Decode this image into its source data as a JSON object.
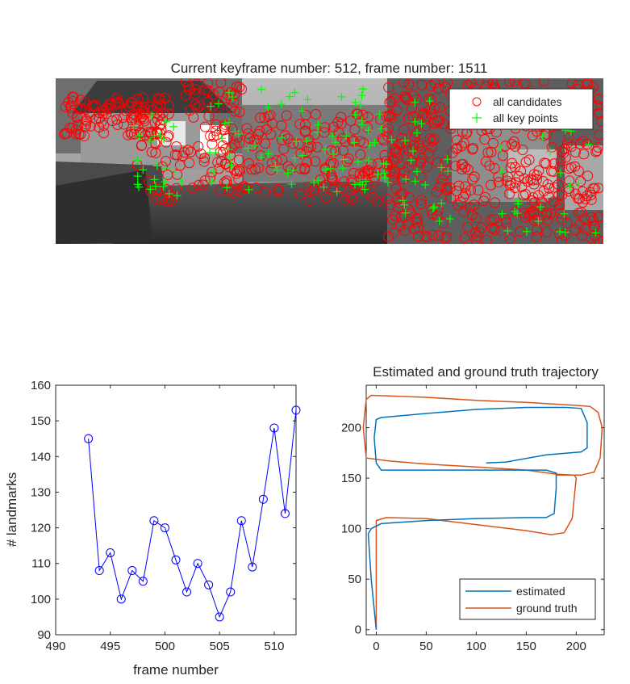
{
  "figure_title": "Current keyframe number: 512, frame number: 1511",
  "image_panel": {
    "legend": [
      {
        "label": "all candidates",
        "marker": "circle",
        "color": "#ff0000"
      },
      {
        "label": "all key points",
        "marker": "plus",
        "color": "#00ff00"
      }
    ]
  },
  "chart_data": [
    {
      "type": "line",
      "title": "",
      "xlabel": "frame number",
      "ylabel": "# landmarks",
      "xlim": [
        490,
        512
      ],
      "ylim": [
        90,
        160
      ],
      "xticks": [
        490,
        495,
        500,
        505,
        510
      ],
      "yticks": [
        90,
        100,
        110,
        120,
        130,
        140,
        150,
        160
      ],
      "color": "#0000ff",
      "marker": "circle",
      "x": [
        493,
        494,
        495,
        496,
        497,
        498,
        499,
        500,
        501,
        502,
        503,
        504,
        505,
        506,
        507,
        508,
        509,
        510,
        511,
        512
      ],
      "y": [
        145,
        108,
        113,
        100,
        108,
        105,
        122,
        120,
        111,
        102,
        110,
        104,
        95,
        102,
        122,
        109,
        128,
        148,
        124,
        153
      ],
      "grid": false
    },
    {
      "type": "line",
      "title": "Estimated and ground truth trajectory",
      "xlim": [
        -10,
        228
      ],
      "ylim": [
        -5,
        242
      ],
      "xticks": [
        0,
        50,
        100,
        150,
        200
      ],
      "yticks": [
        0,
        50,
        100,
        150,
        200
      ],
      "legend_position": "bottom-right",
      "grid": false,
      "series": [
        {
          "name": "estimated",
          "color": "#0072bd",
          "points": [
            [
              0,
              0
            ],
            [
              -5,
              50
            ],
            [
              -8,
              95
            ],
            [
              -5,
              100
            ],
            [
              5,
              105
            ],
            [
              50,
              108
            ],
            [
              100,
              110
            ],
            [
              150,
              111
            ],
            [
              170,
              111
            ],
            [
              178,
              115
            ],
            [
              180,
              140
            ],
            [
              180,
              155
            ],
            [
              170,
              158
            ],
            [
              100,
              158
            ],
            [
              50,
              158
            ],
            [
              5,
              158
            ],
            [
              0,
              165
            ],
            [
              -2,
              190
            ],
            [
              0,
              208
            ],
            [
              5,
              210
            ],
            [
              50,
              214
            ],
            [
              100,
              218
            ],
            [
              150,
              220
            ],
            [
              190,
              220
            ],
            [
              205,
              219
            ],
            [
              211,
              205
            ],
            [
              211,
              180
            ],
            [
              205,
              176
            ],
            [
              170,
              173
            ],
            [
              130,
              166
            ],
            [
              110,
              165
            ]
          ]
        },
        {
          "name": "ground truth",
          "color": "#d95319",
          "points": [
            [
              0,
              0
            ],
            [
              0,
              30
            ],
            [
              0,
              60
            ],
            [
              0,
              95
            ],
            [
              0,
              108
            ],
            [
              10,
              111
            ],
            [
              50,
              110
            ],
            [
              100,
              104
            ],
            [
              150,
              98
            ],
            [
              175,
              94
            ],
            [
              188,
              96
            ],
            [
              196,
              110
            ],
            [
              200,
              150
            ],
            [
              198,
              153
            ],
            [
              180,
              154
            ],
            [
              150,
              158
            ],
            [
              100,
              161
            ],
            [
              50,
              164
            ],
            [
              12,
              167
            ],
            [
              -10,
              170
            ],
            [
              -13,
              200
            ],
            [
              -10,
              228
            ],
            [
              -5,
              232
            ],
            [
              50,
              230
            ],
            [
              100,
              227
            ],
            [
              150,
              225
            ],
            [
              200,
              222
            ],
            [
              214,
              221
            ],
            [
              222,
              215
            ],
            [
              226,
              200
            ],
            [
              224,
              170
            ],
            [
              218,
              156
            ],
            [
              205,
              153
            ],
            [
              180,
              153
            ]
          ]
        }
      ]
    }
  ]
}
